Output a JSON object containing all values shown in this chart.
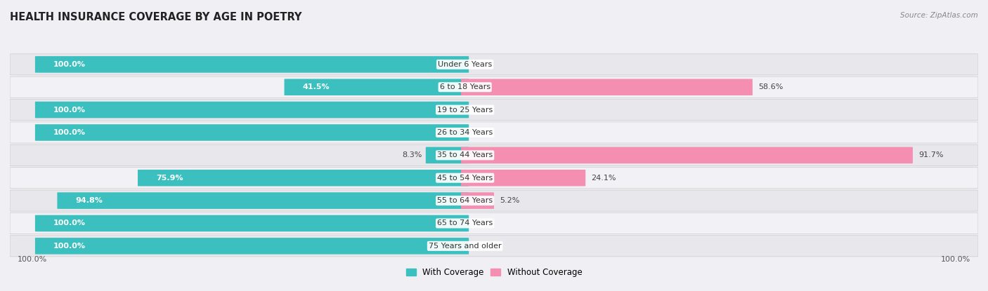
{
  "title": "HEALTH INSURANCE COVERAGE BY AGE IN POETRY",
  "source": "Source: ZipAtlas.com",
  "categories": [
    "Under 6 Years",
    "6 to 18 Years",
    "19 to 25 Years",
    "26 to 34 Years",
    "35 to 44 Years",
    "45 to 54 Years",
    "55 to 64 Years",
    "65 to 74 Years",
    "75 Years and older"
  ],
  "with_coverage": [
    100.0,
    41.5,
    100.0,
    100.0,
    8.3,
    75.9,
    94.8,
    100.0,
    100.0
  ],
  "without_coverage": [
    0.0,
    58.6,
    0.0,
    0.0,
    91.7,
    24.1,
    5.2,
    0.0,
    0.0
  ],
  "color_with": "#3bbfbf",
  "color_without": "#f48fb1",
  "row_color_dark": "#e8e8ec",
  "row_color_light": "#f2f2f6",
  "title_fontsize": 10.5,
  "label_fontsize": 8.0,
  "legend_fontsize": 8.5,
  "source_fontsize": 7.5,
  "value_fontsize": 8.0
}
